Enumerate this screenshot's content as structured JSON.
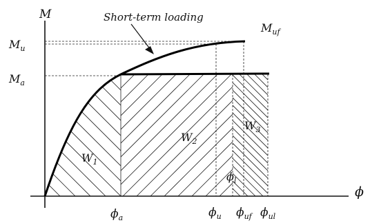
{
  "diagram": {
    "axis_y_label": "M",
    "axis_x_label": "ϕ",
    "curve_label": "Short-term loading",
    "label_Muf": "M",
    "label_Muf_sub": "uf",
    "label_Mu": "M",
    "label_Mu_sub": "u",
    "label_Ma": "M",
    "label_Ma_sub": "a",
    "region_w1": "W",
    "region_w1_sub": "1",
    "region_w2": "W",
    "region_w2_sub": "2",
    "region_w3": "W",
    "region_w3_sub": "3",
    "label_phi_l": "ϕ",
    "label_phi_l_sub": "l",
    "tick_phi_a": "ϕ",
    "tick_phi_a_sub": "a",
    "tick_phi_u": "ϕ",
    "tick_phi_u_sub": "u",
    "tick_phi_uf": "ϕ",
    "tick_phi_uf_sub": "uf",
    "tick_phi_ul": "ϕ",
    "tick_phi_ul_sub": "ul"
  }
}
